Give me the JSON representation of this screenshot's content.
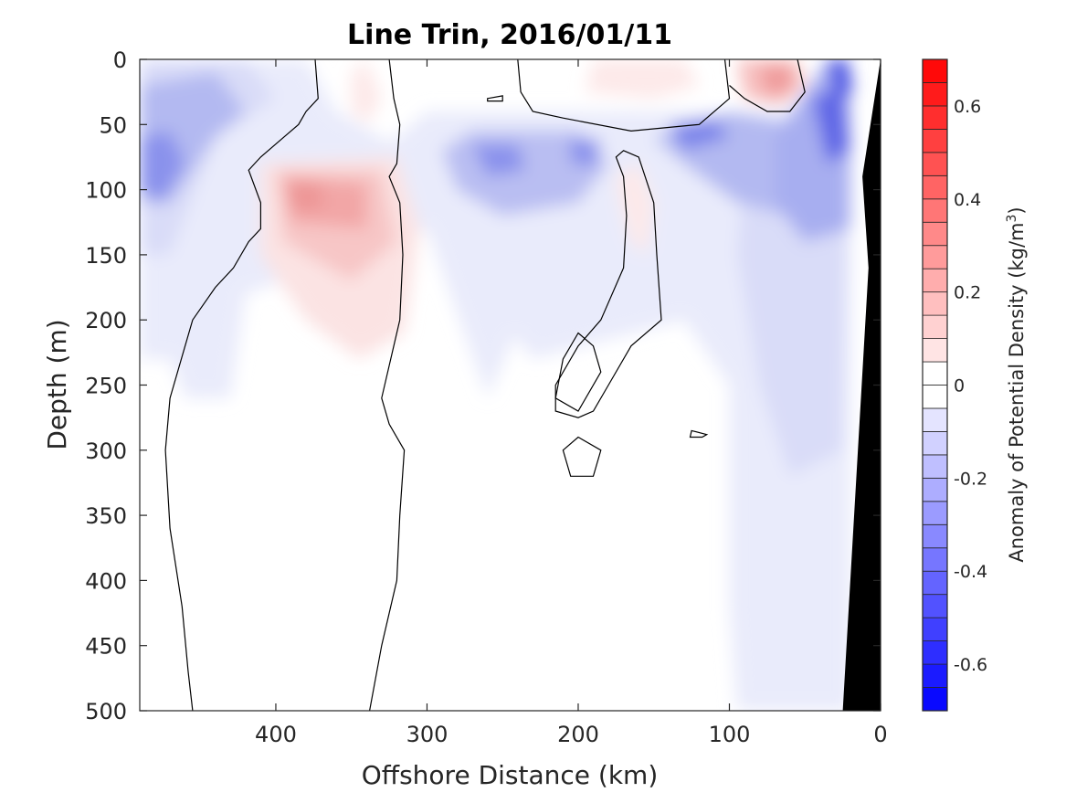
{
  "chart_data": {
    "type": "contour",
    "title": "Line Trin, 2016/01/11",
    "xlabel": "Offshore Distance (km)",
    "ylabel": "Depth (m)",
    "xlim": [
      490,
      0
    ],
    "ylim": [
      0,
      500
    ],
    "x_reversed": true,
    "y_reversed": true,
    "x_ticks": [
      400,
      300,
      200,
      100,
      0
    ],
    "y_ticks": [
      0,
      50,
      100,
      150,
      200,
      250,
      300,
      350,
      400,
      450,
      500
    ],
    "colorbar": {
      "label": "Anomaly of Potential Density (kg/m",
      "label_superscript": "3",
      "label_close": ")",
      "range": [
        -0.7,
        0.7
      ],
      "step": 0.05,
      "ticks": [
        0.6,
        0.4,
        0.2,
        0,
        -0.2,
        -0.4,
        -0.6
      ],
      "tick_labels": [
        "0.6",
        "0.4",
        "0.2",
        "0",
        "-0.2",
        "-0.4",
        "-0.6"
      ],
      "colormap": "blue-white-red",
      "positive_color": "#ff0000",
      "negative_color": "#0000ff"
    },
    "grid": false,
    "features": [
      {
        "kind": "positive-anomaly",
        "x": 365,
        "y": 110,
        "value": 0.25
      },
      {
        "kind": "positive-anomaly",
        "x": 70,
        "y": 15,
        "value": 0.35
      },
      {
        "kind": "positive-anomaly",
        "x": 155,
        "y": 110,
        "value": 0.05
      },
      {
        "kind": "negative-anomaly",
        "x": 30,
        "y": 50,
        "value": -0.5
      },
      {
        "kind": "negative-anomaly",
        "x": 120,
        "y": 55,
        "value": -0.35
      },
      {
        "kind": "negative-anomaly",
        "x": 250,
        "y": 75,
        "value": -0.3
      },
      {
        "kind": "negative-anomaly",
        "x": 475,
        "y": 85,
        "value": -0.3
      },
      {
        "kind": "bathymetry",
        "color": "#000000",
        "x_at_surface": 0,
        "x_at_bottom": 25
      }
    ],
    "zero_contours": 6
  }
}
